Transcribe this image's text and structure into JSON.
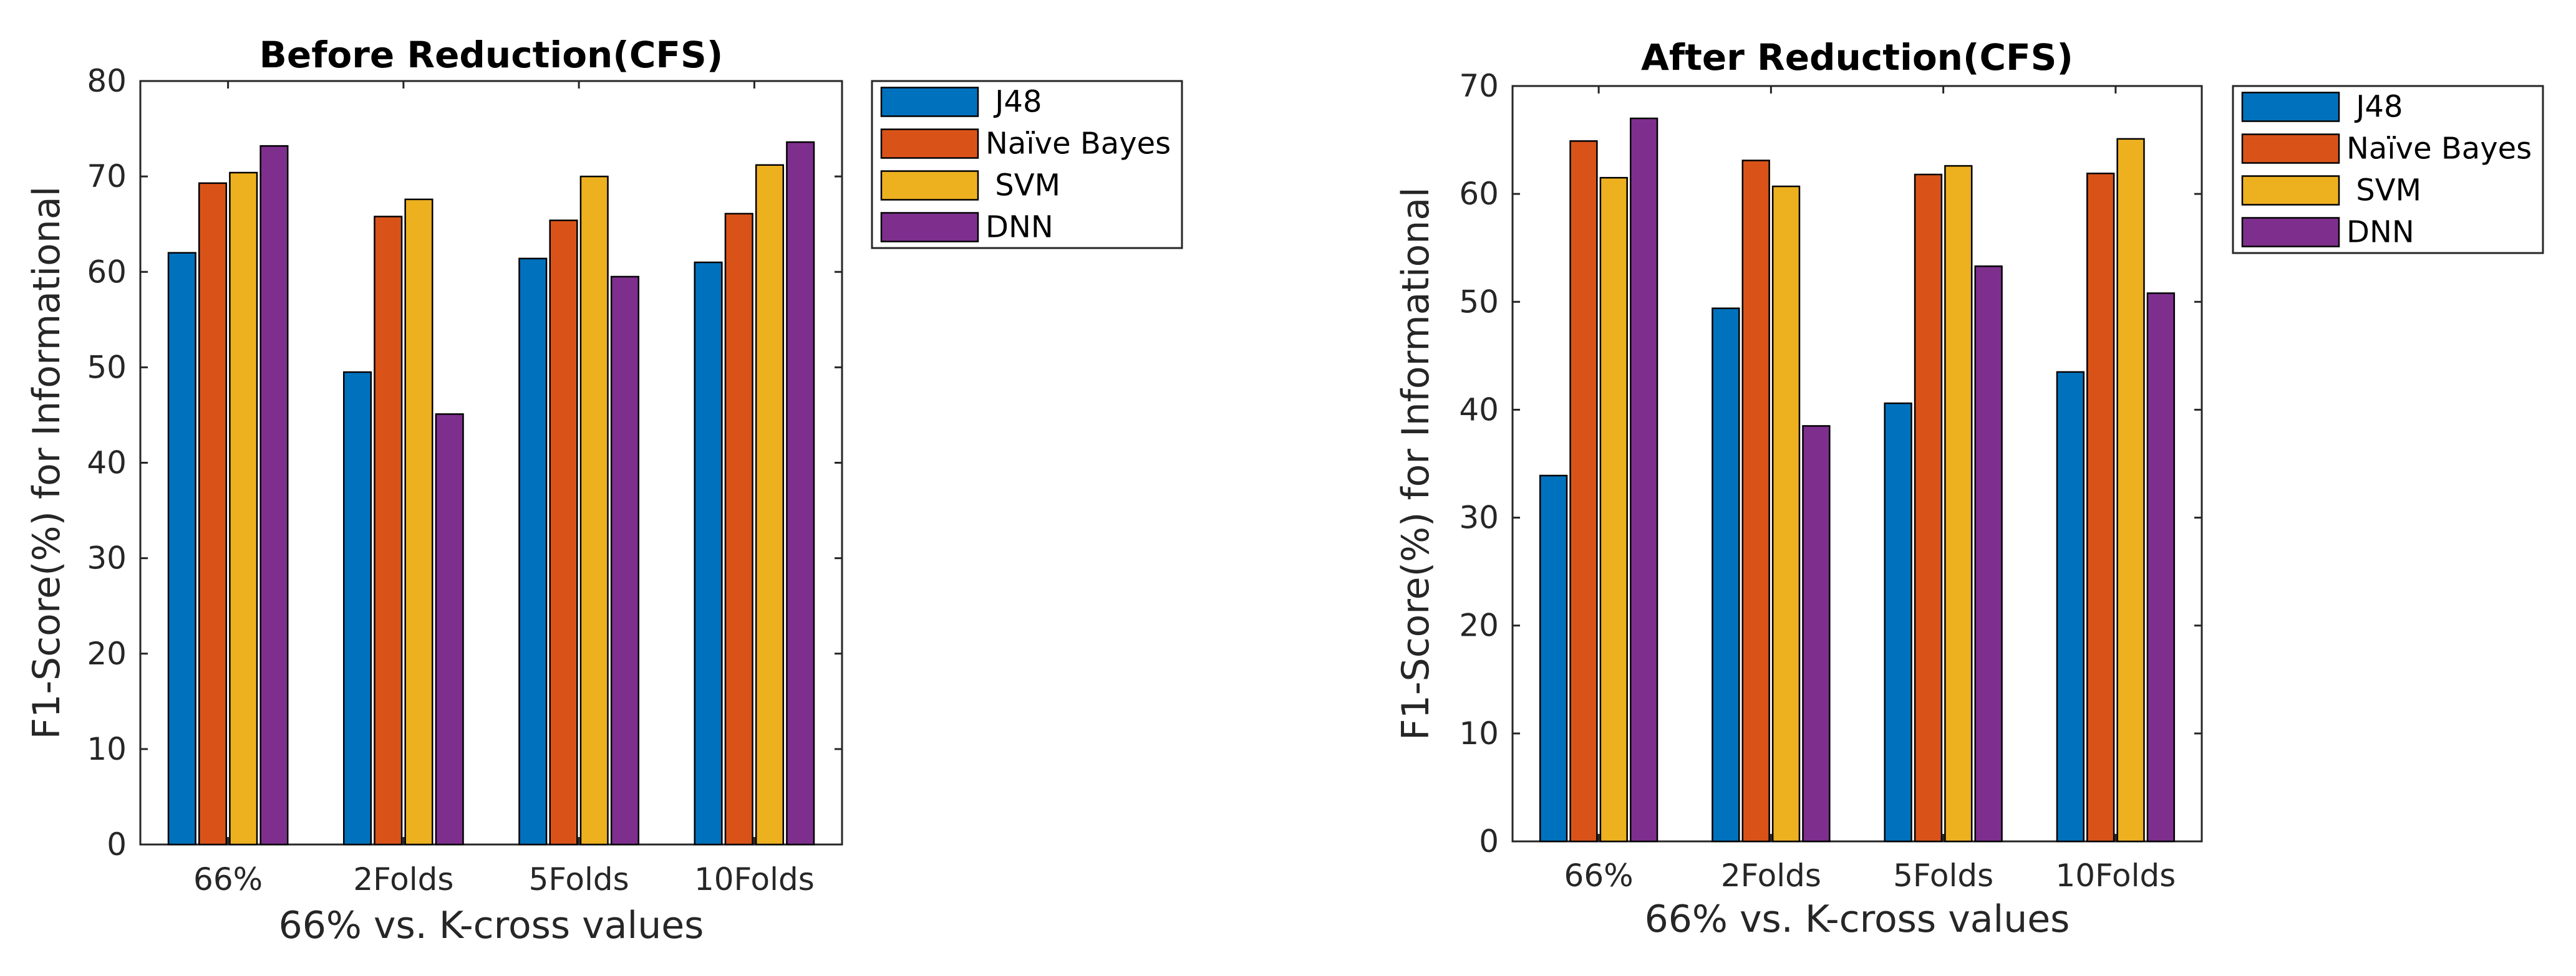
{
  "chart_data": [
    {
      "type": "bar",
      "title": "Before Reduction(CFS)",
      "xlabel": "66% vs. K-cross values",
      "ylabel": "F1-Score(%) for Informational",
      "categories": [
        "66%",
        "2Folds",
        "5Folds",
        "10Folds"
      ],
      "ylim": [
        0,
        80
      ],
      "yticks": [
        0,
        10,
        20,
        30,
        40,
        50,
        60,
        70,
        80
      ],
      "legend_position": "outside-top-right",
      "series": [
        {
          "name": "J48",
          "legend_label": " J48",
          "color": "#0072BD",
          "values": [
            62,
            49.5,
            61.4,
            61
          ]
        },
        {
          "name": "Naïve Bayes",
          "legend_label": "Naïve Bayes",
          "color": "#D95319",
          "values": [
            69.3,
            65.8,
            65.4,
            66.1
          ]
        },
        {
          "name": "SVM",
          "legend_label": " SVM",
          "color": "#EDB120",
          "values": [
            70.4,
            67.6,
            70,
            71.2
          ]
        },
        {
          "name": "DNN",
          "legend_label": "DNN",
          "color": "#7E2F8E",
          "values": [
            73.2,
            45.1,
            59.5,
            73.6
          ]
        }
      ]
    },
    {
      "type": "bar",
      "title": "After Reduction(CFS)",
      "xlabel": "66% vs. K-cross values",
      "ylabel": "F1-Score(%) for Informational",
      "categories": [
        "66%",
        "2Folds",
        "5Folds",
        "10Folds"
      ],
      "ylim": [
        0,
        70
      ],
      "yticks": [
        0,
        10,
        20,
        30,
        40,
        50,
        60,
        70
      ],
      "legend_position": "outside-top-right",
      "series": [
        {
          "name": "J48",
          "legend_label": " J48",
          "color": "#0072BD",
          "values": [
            33.9,
            49.4,
            40.6,
            43.5
          ]
        },
        {
          "name": "Naïve Bayes",
          "legend_label": "Naïve Bayes",
          "color": "#D95319",
          "values": [
            64.9,
            63.1,
            61.8,
            61.9
          ]
        },
        {
          "name": "SVM",
          "legend_label": " SVM",
          "color": "#EDB120",
          "values": [
            61.5,
            60.7,
            62.6,
            65.1
          ]
        },
        {
          "name": "DNN",
          "legend_label": "DNN",
          "color": "#7E2F8E",
          "values": [
            67,
            38.5,
            53.3,
            50.8
          ]
        }
      ]
    }
  ]
}
